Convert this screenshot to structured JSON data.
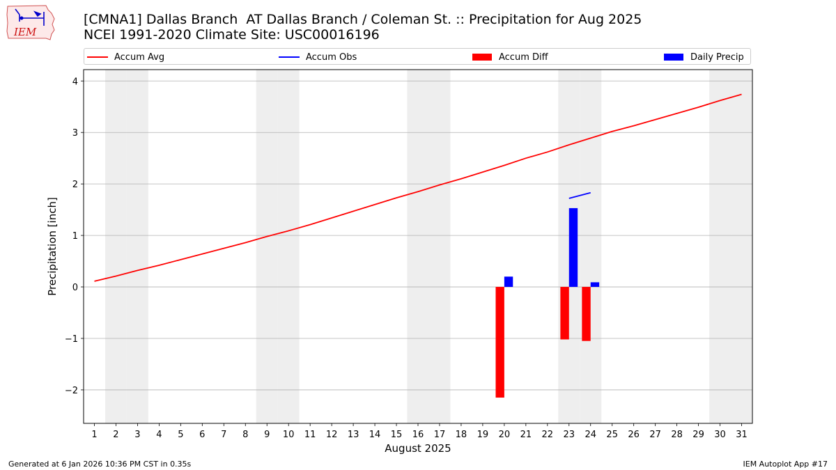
{
  "header": {
    "title_line1": "[CMNA1] Dallas Branch  AT Dallas Branch / Coleman St. :: Precipitation for Aug 2025",
    "title_line2": "NCEI 1991-2020 Climate Site: USC00016196",
    "logo_text": "IEM"
  },
  "legend": {
    "accum_avg": "Accum Avg",
    "accum_obs": "Accum Obs",
    "accum_diff": "Accum Diff",
    "daily_precip": "Daily Precip"
  },
  "footer": {
    "generated": "Generated at 6 Jan 2026 10:36 PM CST in 0.35s",
    "app": "IEM Autoplot App #17"
  },
  "colors": {
    "accum_avg": "#ff0000",
    "accum_obs": "#0000ff",
    "accum_diff": "#ff0000",
    "daily_precip": "#0000ff",
    "weekend_shade": "#eeeeee",
    "grid": "#b0b0b0"
  },
  "chart_data": {
    "type": "bar",
    "title": "[CMNA1] Dallas Branch  AT Dallas Branch / Coleman St. :: Precipitation for Aug 2025",
    "subtitle": "NCEI 1991-2020 Climate Site: USC00016196",
    "xlabel": "August 2025",
    "ylabel": "Precipitation [inch]",
    "x": [
      1,
      2,
      3,
      4,
      5,
      6,
      7,
      8,
      9,
      10,
      11,
      12,
      13,
      14,
      15,
      16,
      17,
      18,
      19,
      20,
      21,
      22,
      23,
      24,
      25,
      26,
      27,
      28,
      29,
      30,
      31
    ],
    "xlim": [
      0.5,
      31.5
    ],
    "ylim": [
      -2.65,
      4.22
    ],
    "yticks": [
      -2,
      -1,
      0,
      1,
      2,
      3,
      4
    ],
    "ytick_labels": [
      "−2",
      "−1",
      "0",
      "1",
      "2",
      "3",
      "4"
    ],
    "grid": "horizontal",
    "legend_position": "top",
    "weekend_days": [
      2,
      3,
      9,
      10,
      16,
      17,
      23,
      24,
      30,
      31
    ],
    "series": [
      {
        "name": "Accum Avg",
        "kind": "line",
        "x": [
          1,
          2,
          3,
          4,
          5,
          6,
          7,
          8,
          9,
          10,
          11,
          12,
          13,
          14,
          15,
          16,
          17,
          18,
          19,
          20,
          21,
          22,
          23,
          24,
          25,
          26,
          27,
          28,
          29,
          30,
          31
        ],
        "values": [
          0.11,
          0.21,
          0.32,
          0.42,
          0.53,
          0.64,
          0.75,
          0.86,
          0.98,
          1.09,
          1.21,
          1.34,
          1.47,
          1.6,
          1.73,
          1.85,
          1.98,
          2.1,
          2.23,
          2.36,
          2.5,
          2.62,
          2.76,
          2.89,
          3.02,
          3.13,
          3.25,
          3.37,
          3.49,
          3.62,
          3.74
        ]
      },
      {
        "name": "Accum Obs",
        "kind": "line",
        "x": [
          23,
          24
        ],
        "values": [
          1.72,
          1.83
        ]
      },
      {
        "name": "Accum Diff",
        "kind": "bar",
        "x": [
          20,
          23,
          24
        ],
        "values": [
          -2.15,
          -1.02,
          -1.05
        ]
      },
      {
        "name": "Daily Precip",
        "kind": "bar",
        "x": [
          20,
          23,
          24
        ],
        "values": [
          0.2,
          1.53,
          0.09
        ]
      }
    ]
  }
}
